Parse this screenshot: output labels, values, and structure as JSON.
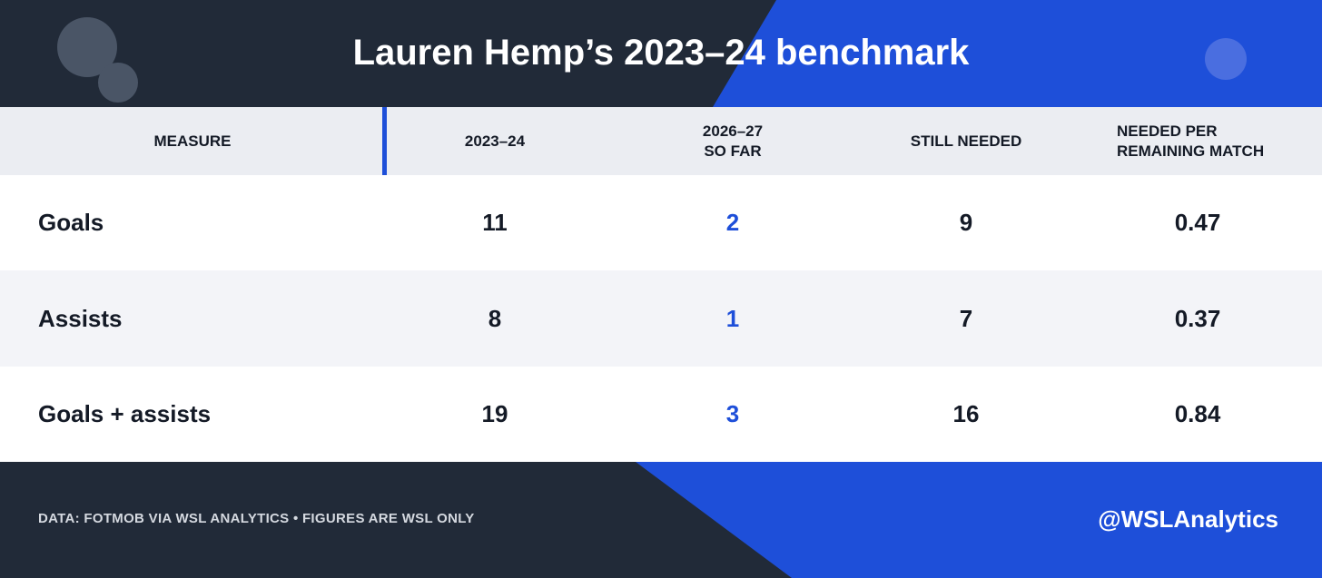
{
  "header": {
    "title": "Lauren Hemp’s 2023–24 benchmark"
  },
  "table": {
    "columns": [
      [
        "MEASURE"
      ],
      [
        "2023–24"
      ],
      [
        "2026–27",
        "SO FAR"
      ],
      [
        "STILL NEEDED"
      ],
      [
        "NEEDED PER",
        "REMAINING MATCH"
      ]
    ],
    "rows": [
      [
        "Goals",
        11,
        2,
        9,
        0.47
      ],
      [
        "Assists",
        8,
        1,
        7,
        0.37
      ],
      [
        "Goals + assists",
        19,
        3,
        16,
        0.84
      ]
    ]
  },
  "footer": {
    "source": "DATA: FOTMOB VIA WSL ANALYTICS • FIGURES ARE WSL ONLY",
    "handle": "@WSLAnalytics"
  }
}
